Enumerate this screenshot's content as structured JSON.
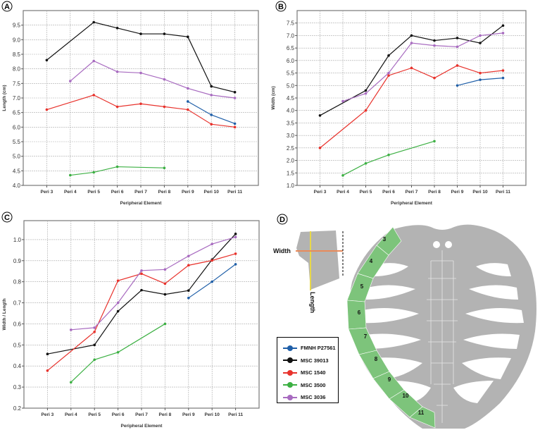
{
  "panels": {
    "a": "A",
    "b": "B",
    "c": "C",
    "d": "D"
  },
  "series_meta": [
    {
      "name": "FMNH P27561",
      "color": "#1f5fa8"
    },
    {
      "name": "MSC 39013",
      "color": "#111111"
    },
    {
      "name": "MSC 1540",
      "color": "#e8322c"
    },
    {
      "name": "MSC 3500",
      "color": "#3cb043"
    },
    {
      "name": "MSC 3036",
      "color": "#a86bc0"
    }
  ],
  "chart_data": [
    {
      "type": "line",
      "panel": "A",
      "xlabel": "Peripheral Element",
      "ylabel": "Length (cm)",
      "categories": [
        "Peri 3",
        "Peri 4",
        "Peri 5",
        "Peri 6",
        "Peri 7",
        "Peri 8",
        "Peri 9",
        "Peri 10",
        "Peri 11"
      ],
      "ylim": [
        4.0,
        10.0
      ],
      "yticks": [
        "4.0",
        "4.5",
        "5.0",
        "5.5",
        "6.0",
        "6.5",
        "7.0",
        "7.5",
        "8.0",
        "8.5",
        "9.0",
        "9.5"
      ],
      "grid": true,
      "series": [
        {
          "name": "FMNH P27561",
          "values": [
            null,
            null,
            null,
            null,
            null,
            null,
            6.88,
            6.42,
            6.12
          ]
        },
        {
          "name": "MSC 39013",
          "values": [
            8.3,
            null,
            9.6,
            9.4,
            9.2,
            9.2,
            9.1,
            7.4,
            7.2
          ]
        },
        {
          "name": "MSC 1540",
          "values": [
            6.6,
            null,
            7.1,
            6.7,
            6.8,
            6.7,
            6.6,
            6.1,
            6.0
          ]
        },
        {
          "name": "MSC 3500",
          "values": [
            null,
            4.35,
            4.45,
            4.64,
            null,
            4.6,
            null,
            null,
            null
          ]
        },
        {
          "name": "MSC 3036",
          "values": [
            null,
            7.58,
            8.27,
            7.9,
            7.86,
            7.64,
            7.33,
            7.1,
            7.0
          ]
        }
      ]
    },
    {
      "type": "line",
      "panel": "B",
      "xlabel": "Peripheral Element",
      "ylabel": "Width (cm)",
      "categories": [
        "Peri 3",
        "Peri 4",
        "Peri 5",
        "Peri 6",
        "Peri 7",
        "Peri 8",
        "Peri 9",
        "Peri 10",
        "Peri 11"
      ],
      "ylim": [
        1.0,
        8.0
      ],
      "yticks": [
        "1.0",
        "1.5",
        "2.0",
        "2.5",
        "3.0",
        "3.5",
        "4.0",
        "4.5",
        "5.0",
        "5.5",
        "6.0",
        "6.5",
        "7.0",
        "7.5"
      ],
      "grid": true,
      "series": [
        {
          "name": "FMNH P27561",
          "values": [
            null,
            null,
            null,
            null,
            null,
            null,
            5.0,
            5.23,
            5.3
          ]
        },
        {
          "name": "MSC 39013",
          "values": [
            3.8,
            null,
            4.8,
            6.2,
            7.0,
            6.8,
            6.9,
            6.7,
            7.4
          ]
        },
        {
          "name": "MSC 1540",
          "values": [
            2.5,
            null,
            4.0,
            5.4,
            5.7,
            5.3,
            5.8,
            5.5,
            5.6
          ]
        },
        {
          "name": "MSC 3500",
          "values": [
            null,
            1.4,
            1.88,
            2.22,
            null,
            2.77,
            null,
            null,
            null
          ]
        },
        {
          "name": "MSC 3036",
          "values": [
            null,
            4.37,
            4.68,
            5.5,
            6.7,
            6.6,
            6.55,
            7.0,
            7.1
          ]
        }
      ]
    },
    {
      "type": "line",
      "panel": "C",
      "xlabel": "Peripheral Element",
      "ylabel": "Width / Length",
      "categories": [
        "Peri 3",
        "Peri 4",
        "Peri 5",
        "Peri 6",
        "Peri 7",
        "Peri 8",
        "Peri 9",
        "Peri 10",
        "Peri 11"
      ],
      "ylim": [
        0.2,
        1.09
      ],
      "yticks": [
        "0.2",
        "0.3",
        "0.4",
        "0.5",
        "0.6",
        "0.7",
        "0.8",
        "0.9",
        "1.0"
      ],
      "grid": true,
      "series": [
        {
          "name": "FMNH P27561",
          "values": [
            null,
            null,
            null,
            null,
            null,
            null,
            0.723,
            0.8,
            0.883
          ]
        },
        {
          "name": "MSC 39013",
          "values": [
            0.457,
            null,
            0.5,
            0.66,
            0.76,
            0.74,
            0.758,
            0.905,
            1.027
          ]
        },
        {
          "name": "MSC 1540",
          "values": [
            0.378,
            null,
            0.562,
            0.805,
            0.838,
            0.791,
            0.878,
            0.901,
            0.933
          ]
        },
        {
          "name": "MSC 3500",
          "values": [
            null,
            0.323,
            0.43,
            0.465,
            null,
            0.6,
            null,
            null,
            null
          ]
        },
        {
          "name": "MSC 3036",
          "values": [
            null,
            0.572,
            0.582,
            0.7,
            0.853,
            0.858,
            0.922,
            0.979,
            1.012
          ]
        }
      ]
    }
  ],
  "diagram": {
    "width_label": "Width",
    "length_label": "Length",
    "peripheral_labels": [
      "3",
      "4",
      "5",
      "6",
      "7",
      "8",
      "9",
      "10",
      "11"
    ],
    "highlight_color": "#7dc47b",
    "shell_color": "#b3b3b3"
  }
}
